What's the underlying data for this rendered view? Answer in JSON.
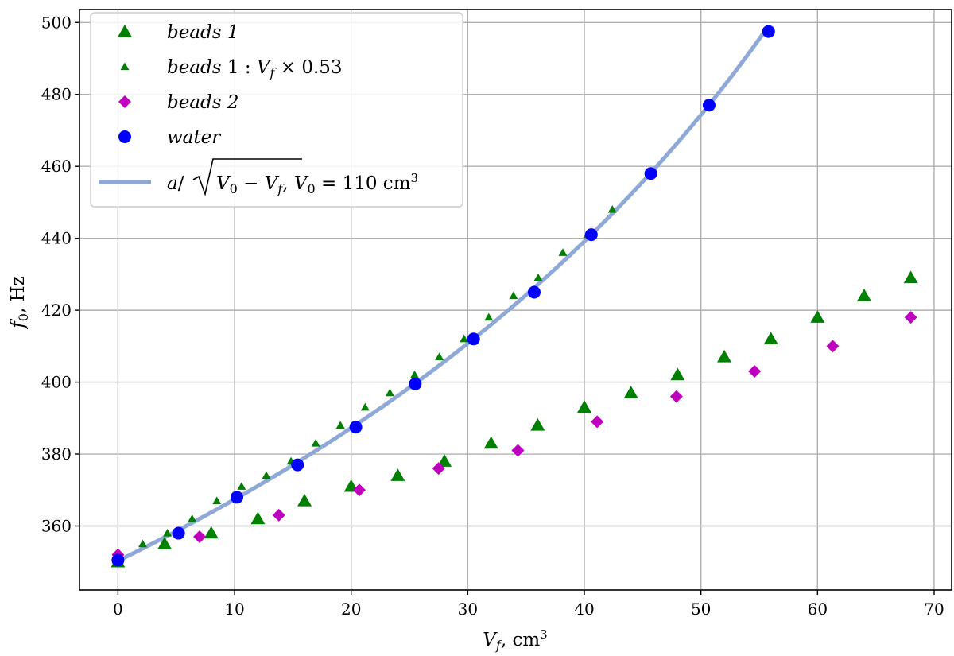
{
  "chart_data": {
    "type": "scatter",
    "xlabel": "V_f, cm³",
    "ylabel": "f_0, Hz",
    "xlim": [
      -3.3,
      71.5
    ],
    "ylim": [
      342.2,
      503.6
    ],
    "x_ticks": [
      0,
      10,
      20,
      30,
      40,
      50,
      60,
      70
    ],
    "y_ticks": [
      360,
      380,
      400,
      420,
      440,
      460,
      480,
      500
    ],
    "grid": true,
    "legend_position": "top-left",
    "series": [
      {
        "name": "beads 1",
        "marker": "triangle",
        "color": "#008000",
        "points": [
          [
            0,
            350
          ],
          [
            4,
            355
          ],
          [
            8,
            358
          ],
          [
            12,
            362
          ],
          [
            16,
            367
          ],
          [
            20,
            371
          ],
          [
            24,
            374
          ],
          [
            28,
            378
          ],
          [
            32,
            383
          ],
          [
            36,
            388
          ],
          [
            40,
            393
          ],
          [
            44,
            397
          ],
          [
            48,
            402
          ],
          [
            52,
            407
          ],
          [
            56,
            412
          ],
          [
            60,
            418
          ],
          [
            64,
            424
          ],
          [
            68,
            429
          ]
        ]
      },
      {
        "name": "beads 1: V_f × 0.53",
        "marker": "small-triangle",
        "color": "#008000",
        "points": [
          [
            0,
            350
          ],
          [
            2.12,
            355
          ],
          [
            4.24,
            358
          ],
          [
            6.36,
            362
          ],
          [
            8.48,
            367
          ],
          [
            10.6,
            371
          ],
          [
            12.72,
            374
          ],
          [
            14.84,
            378
          ],
          [
            16.96,
            383
          ],
          [
            19.08,
            388
          ],
          [
            21.2,
            393
          ],
          [
            23.32,
            397
          ],
          [
            25.44,
            402
          ],
          [
            27.56,
            407
          ],
          [
            29.68,
            412
          ],
          [
            31.8,
            418
          ],
          [
            33.92,
            424
          ],
          [
            36.04,
            429
          ],
          [
            38.16,
            436
          ],
          [
            40.28,
            441
          ],
          [
            42.4,
            448
          ]
        ]
      },
      {
        "name": "beads 2",
        "marker": "diamond",
        "color": "#bf00bf",
        "points": [
          [
            0,
            352
          ],
          [
            7,
            357
          ],
          [
            13.8,
            363
          ],
          [
            20.7,
            370
          ],
          [
            27.5,
            376
          ],
          [
            34.3,
            381
          ],
          [
            41.1,
            389
          ],
          [
            47.9,
            396
          ],
          [
            54.6,
            403
          ],
          [
            61.3,
            410
          ],
          [
            68,
            418
          ]
        ]
      },
      {
        "name": "water",
        "marker": "circle",
        "color": "#0000ff",
        "points": [
          [
            0,
            350.5
          ],
          [
            5.2,
            358
          ],
          [
            10.2,
            368
          ],
          [
            15.4,
            377
          ],
          [
            20.4,
            387.5
          ],
          [
            25.5,
            399.5
          ],
          [
            30.5,
            412
          ],
          [
            35.7,
            425
          ],
          [
            40.6,
            441
          ],
          [
            45.7,
            458
          ],
          [
            50.7,
            477
          ],
          [
            55.8,
            497.5
          ]
        ]
      },
      {
        "name": "a/√(V_0 − V_f), V_0 = 110 cm³",
        "type": "line",
        "color": "#8ea8d8",
        "V0": 110,
        "a": 3674,
        "x_range": [
          0,
          55.8
        ]
      }
    ]
  }
}
